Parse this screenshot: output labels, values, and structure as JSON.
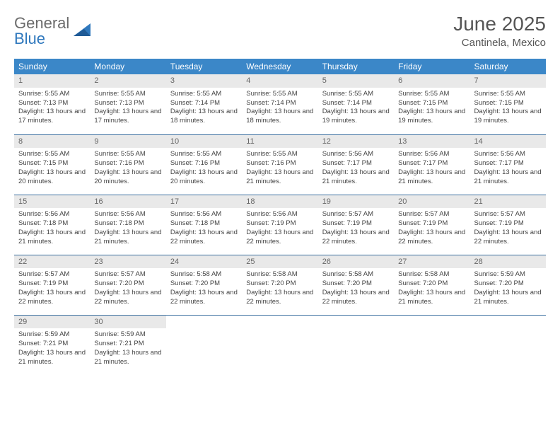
{
  "brand": {
    "part1": "General",
    "part2": "Blue"
  },
  "title": "June 2025",
  "location": "Cantinela, Mexico",
  "colors": {
    "header_bg": "#3b87c8",
    "header_text": "#ffffff",
    "row_border": "#3b6fa0",
    "daynum_bg": "#e9e9e9",
    "body_text": "#444444",
    "title_text": "#555555",
    "logo_gray": "#6b6b6b",
    "logo_blue": "#2f78bd"
  },
  "weekdays": [
    "Sunday",
    "Monday",
    "Tuesday",
    "Wednesday",
    "Thursday",
    "Friday",
    "Saturday"
  ],
  "weeks": [
    [
      {
        "n": "1",
        "sr": "5:55 AM",
        "ss": "7:13 PM",
        "dl": "13 hours and 17 minutes."
      },
      {
        "n": "2",
        "sr": "5:55 AM",
        "ss": "7:13 PM",
        "dl": "13 hours and 17 minutes."
      },
      {
        "n": "3",
        "sr": "5:55 AM",
        "ss": "7:14 PM",
        "dl": "13 hours and 18 minutes."
      },
      {
        "n": "4",
        "sr": "5:55 AM",
        "ss": "7:14 PM",
        "dl": "13 hours and 18 minutes."
      },
      {
        "n": "5",
        "sr": "5:55 AM",
        "ss": "7:14 PM",
        "dl": "13 hours and 19 minutes."
      },
      {
        "n": "6",
        "sr": "5:55 AM",
        "ss": "7:15 PM",
        "dl": "13 hours and 19 minutes."
      },
      {
        "n": "7",
        "sr": "5:55 AM",
        "ss": "7:15 PM",
        "dl": "13 hours and 19 minutes."
      }
    ],
    [
      {
        "n": "8",
        "sr": "5:55 AM",
        "ss": "7:15 PM",
        "dl": "13 hours and 20 minutes."
      },
      {
        "n": "9",
        "sr": "5:55 AM",
        "ss": "7:16 PM",
        "dl": "13 hours and 20 minutes."
      },
      {
        "n": "10",
        "sr": "5:55 AM",
        "ss": "7:16 PM",
        "dl": "13 hours and 20 minutes."
      },
      {
        "n": "11",
        "sr": "5:55 AM",
        "ss": "7:16 PM",
        "dl": "13 hours and 21 minutes."
      },
      {
        "n": "12",
        "sr": "5:56 AM",
        "ss": "7:17 PM",
        "dl": "13 hours and 21 minutes."
      },
      {
        "n": "13",
        "sr": "5:56 AM",
        "ss": "7:17 PM",
        "dl": "13 hours and 21 minutes."
      },
      {
        "n": "14",
        "sr": "5:56 AM",
        "ss": "7:17 PM",
        "dl": "13 hours and 21 minutes."
      }
    ],
    [
      {
        "n": "15",
        "sr": "5:56 AM",
        "ss": "7:18 PM",
        "dl": "13 hours and 21 minutes."
      },
      {
        "n": "16",
        "sr": "5:56 AM",
        "ss": "7:18 PM",
        "dl": "13 hours and 21 minutes."
      },
      {
        "n": "17",
        "sr": "5:56 AM",
        "ss": "7:18 PM",
        "dl": "13 hours and 22 minutes."
      },
      {
        "n": "18",
        "sr": "5:56 AM",
        "ss": "7:19 PM",
        "dl": "13 hours and 22 minutes."
      },
      {
        "n": "19",
        "sr": "5:57 AM",
        "ss": "7:19 PM",
        "dl": "13 hours and 22 minutes."
      },
      {
        "n": "20",
        "sr": "5:57 AM",
        "ss": "7:19 PM",
        "dl": "13 hours and 22 minutes."
      },
      {
        "n": "21",
        "sr": "5:57 AM",
        "ss": "7:19 PM",
        "dl": "13 hours and 22 minutes."
      }
    ],
    [
      {
        "n": "22",
        "sr": "5:57 AM",
        "ss": "7:19 PM",
        "dl": "13 hours and 22 minutes."
      },
      {
        "n": "23",
        "sr": "5:57 AM",
        "ss": "7:20 PM",
        "dl": "13 hours and 22 minutes."
      },
      {
        "n": "24",
        "sr": "5:58 AM",
        "ss": "7:20 PM",
        "dl": "13 hours and 22 minutes."
      },
      {
        "n": "25",
        "sr": "5:58 AM",
        "ss": "7:20 PM",
        "dl": "13 hours and 22 minutes."
      },
      {
        "n": "26",
        "sr": "5:58 AM",
        "ss": "7:20 PM",
        "dl": "13 hours and 22 minutes."
      },
      {
        "n": "27",
        "sr": "5:58 AM",
        "ss": "7:20 PM",
        "dl": "13 hours and 21 minutes."
      },
      {
        "n": "28",
        "sr": "5:59 AM",
        "ss": "7:20 PM",
        "dl": "13 hours and 21 minutes."
      }
    ],
    [
      {
        "n": "29",
        "sr": "5:59 AM",
        "ss": "7:21 PM",
        "dl": "13 hours and 21 minutes."
      },
      {
        "n": "30",
        "sr": "5:59 AM",
        "ss": "7:21 PM",
        "dl": "13 hours and 21 minutes."
      },
      null,
      null,
      null,
      null,
      null
    ]
  ],
  "labels": {
    "sunrise": "Sunrise:",
    "sunset": "Sunset:",
    "daylight": "Daylight:"
  }
}
